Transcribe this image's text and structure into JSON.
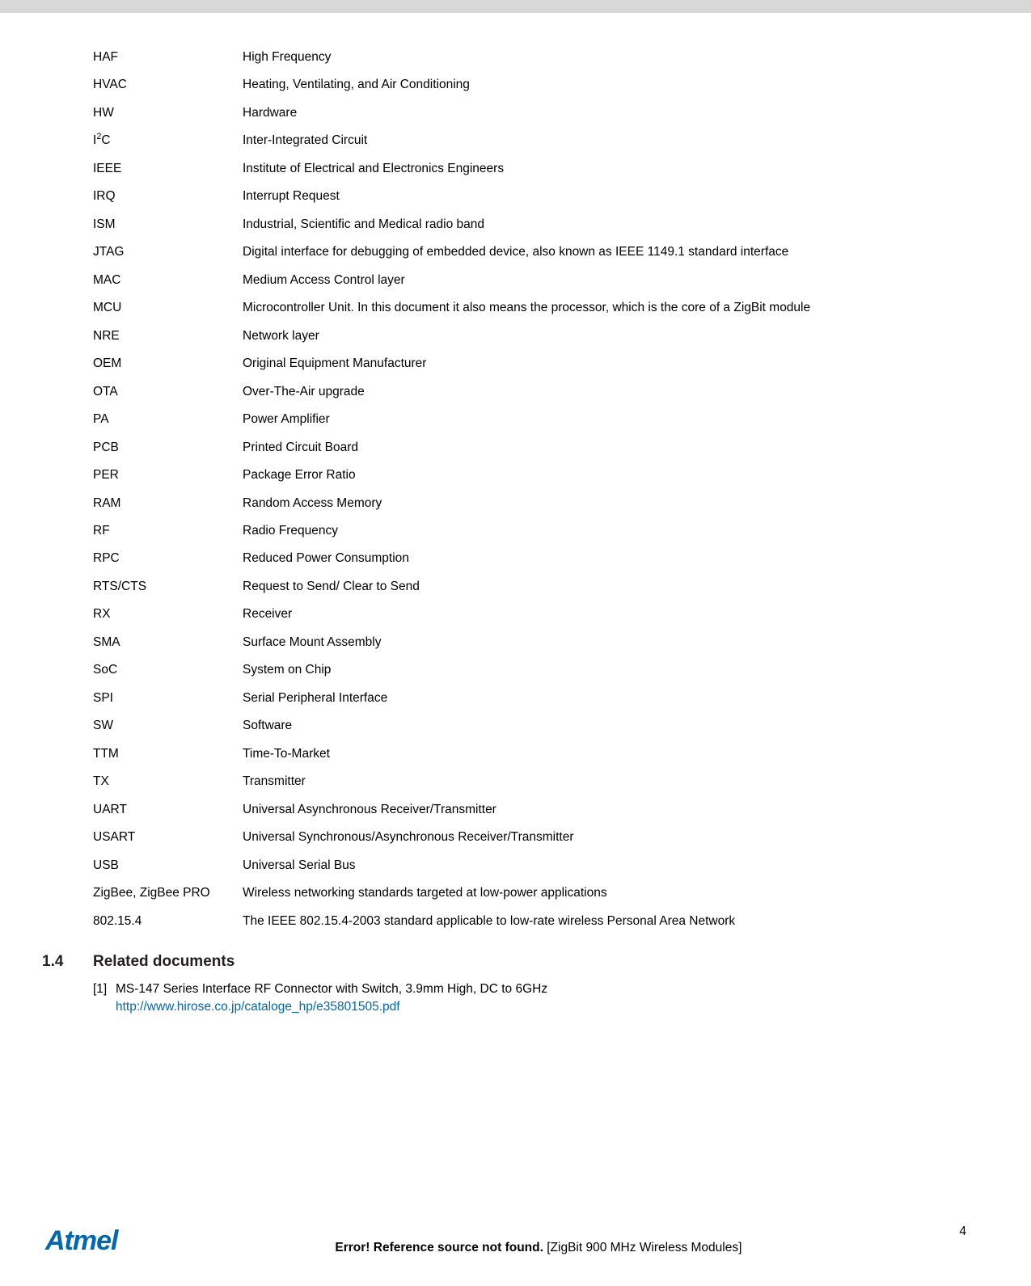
{
  "colors": {
    "strip": "#d8d8d8",
    "text": "#000000",
    "link": "#0067b3",
    "logo": "#0067b3",
    "background": "#ffffff"
  },
  "typography": {
    "body_fontsize": 15.5,
    "heading_fontsize": 19,
    "logo_fontsize": 34,
    "font_family": "Arial"
  },
  "definitions": [
    {
      "term": "HAF",
      "desc": "High Frequency"
    },
    {
      "term": "HVAC",
      "desc": "Heating, Ventilating, and Air Conditioning"
    },
    {
      "term": "HW",
      "desc": "Hardware"
    },
    {
      "term": "I2C",
      "term_html": "I<span class=\"sup\">2</span>C",
      "desc": "Inter-Integrated Circuit"
    },
    {
      "term": "IEEE",
      "desc": "Institute of Electrical and Electronics Engineers"
    },
    {
      "term": "IRQ",
      "desc": "Interrupt Request"
    },
    {
      "term": "ISM",
      "desc": "Industrial, Scientific and Medical radio band"
    },
    {
      "term": "JTAG",
      "desc": "Digital interface for debugging of embedded device, also known as IEEE 1149.1 standard interface"
    },
    {
      "term": "MAC",
      "desc": "Medium Access Control layer"
    },
    {
      "term": "MCU",
      "desc": "Microcontroller Unit. In this document it also means the processor, which is the core of a ZigBit module"
    },
    {
      "term": "NRE",
      "desc": "Network layer"
    },
    {
      "term": "OEM",
      "desc": "Original Equipment Manufacturer"
    },
    {
      "term": "OTA",
      "desc": "Over-The-Air upgrade"
    },
    {
      "term": "PA",
      "desc": "Power Amplifier"
    },
    {
      "term": "PCB",
      "desc": "Printed Circuit Board"
    },
    {
      "term": "PER",
      "desc": "Package Error Ratio"
    },
    {
      "term": "RAM",
      "desc": "Random Access Memory"
    },
    {
      "term": "RF",
      "desc": "Radio Frequency"
    },
    {
      "term": "RPC",
      "desc": "Reduced Power Consumption"
    },
    {
      "term": "RTS/CTS",
      "desc": "Request to Send/ Clear to Send"
    },
    {
      "term": "RX",
      "desc": "Receiver"
    },
    {
      "term": "SMA",
      "desc": "Surface Mount Assembly"
    },
    {
      "term": "SoC",
      "desc": "System on Chip"
    },
    {
      "term": "SPI",
      "desc": "Serial Peripheral Interface"
    },
    {
      "term": "SW",
      "desc": "Software"
    },
    {
      "term": "TTM",
      "desc": "Time-To-Market"
    },
    {
      "term": "TX",
      "desc": "Transmitter"
    },
    {
      "term": "UART",
      "desc": "Universal Asynchronous Receiver/Transmitter"
    },
    {
      "term": "USART",
      "desc": "Universal Synchronous/Asynchronous Receiver/Transmitter"
    },
    {
      "term": "USB",
      "desc": "Universal Serial Bus"
    },
    {
      "term": "ZigBee, ZigBee PRO",
      "desc": "Wireless networking standards targeted at low-power applications"
    },
    {
      "term": "802.15.4",
      "desc": "The IEEE 802.15.4-2003 standard applicable to low-rate wireless Personal Area Network"
    }
  ],
  "section": {
    "number": "1.4",
    "title": "Related documents"
  },
  "references": [
    {
      "num": "[1]",
      "text": "MS-147 Series Interface RF Connector with Switch, 3.9mm High, DC to 6GHz",
      "link_text": "http://www.hirose.co.jp/cataloge_hp/e35801505.pdf"
    }
  ],
  "footer": {
    "logo_text": "Atmel",
    "error_text": "Error! Reference source not found.",
    "bracket_text": " [ZigBit 900 MHz Wireless Modules]",
    "page_number": "4"
  }
}
